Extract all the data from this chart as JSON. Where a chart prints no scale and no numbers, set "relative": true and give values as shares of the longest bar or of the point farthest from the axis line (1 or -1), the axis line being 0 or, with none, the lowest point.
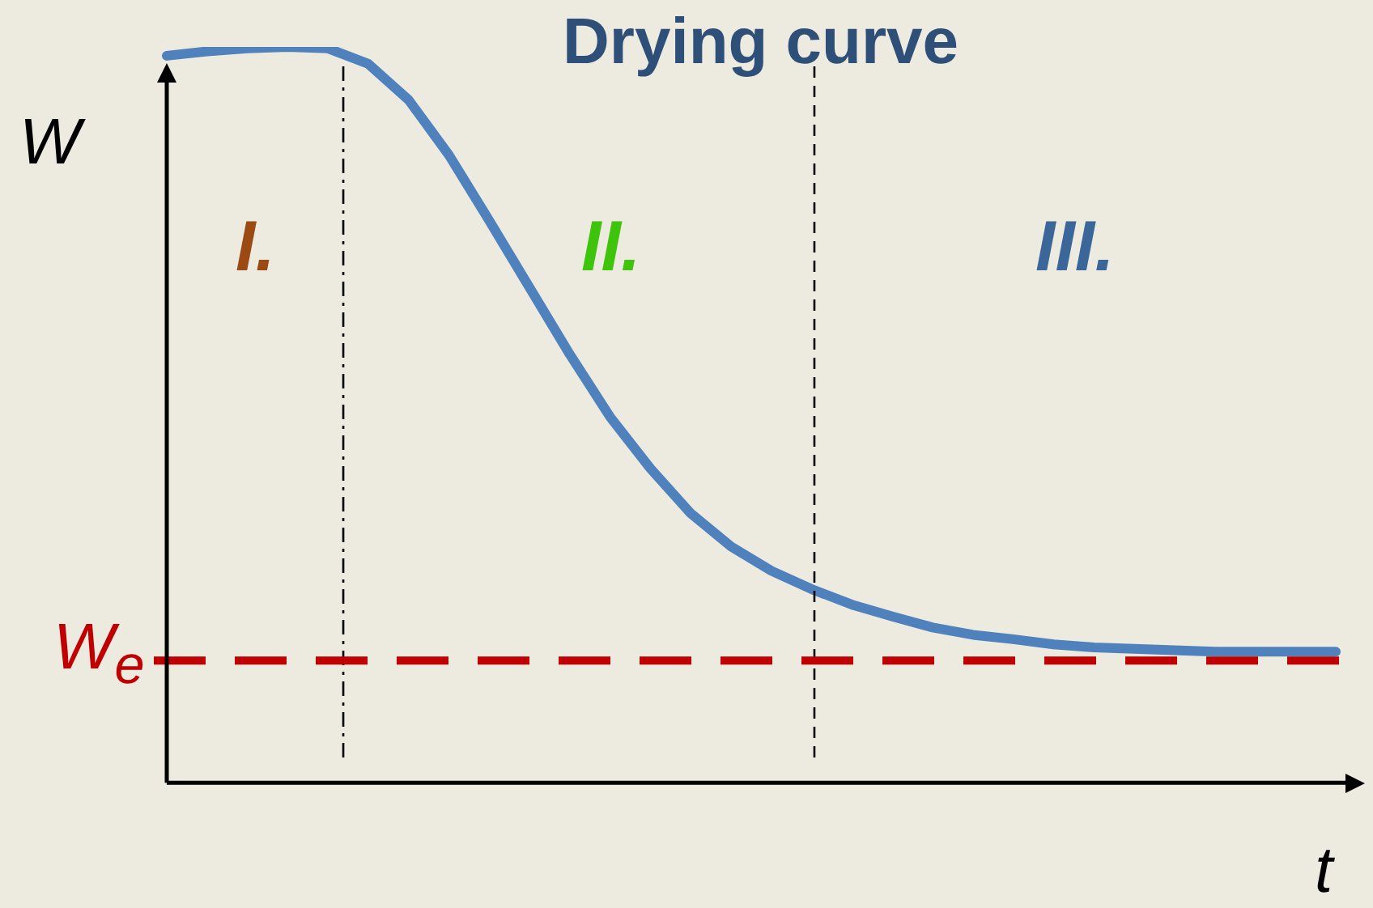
{
  "chart_data": {
    "type": "line",
    "title": "Drying curve",
    "xlabel": "t",
    "ylabel": "W",
    "relative": true,
    "marker": "none",
    "line_style": "solid",
    "categories": [
      null,
      null,
      null,
      null,
      null,
      null,
      null,
      null,
      null,
      null,
      null,
      null,
      null,
      null,
      null,
      null,
      null,
      null,
      null,
      null,
      null,
      null,
      null,
      null,
      null,
      null,
      null,
      null,
      null,
      null
    ],
    "series": [
      {
        "color": "#4f81bd",
        "values": [
          0.988,
          0.994,
          0.998,
          1,
          0.998,
          0.977,
          0.928,
          0.853,
          0.764,
          0.673,
          0.582,
          0.497,
          0.427,
          0.366,
          0.321,
          0.288,
          0.263,
          0.242,
          0.226,
          0.211,
          0.201,
          0.195,
          0.188,
          0.184,
          0.182,
          0.18,
          0.178,
          0.178,
          0.178,
          0.178
        ]
      }
    ],
    "ref_lines": [
      {
        "axis": "y",
        "value": 0.166,
        "label": "W$_{e}$",
        "color": "#c00000",
        "line_style": "dashed"
      }
    ],
    "annotations": [
      "I.",
      "II.",
      "III."
    ]
  }
}
